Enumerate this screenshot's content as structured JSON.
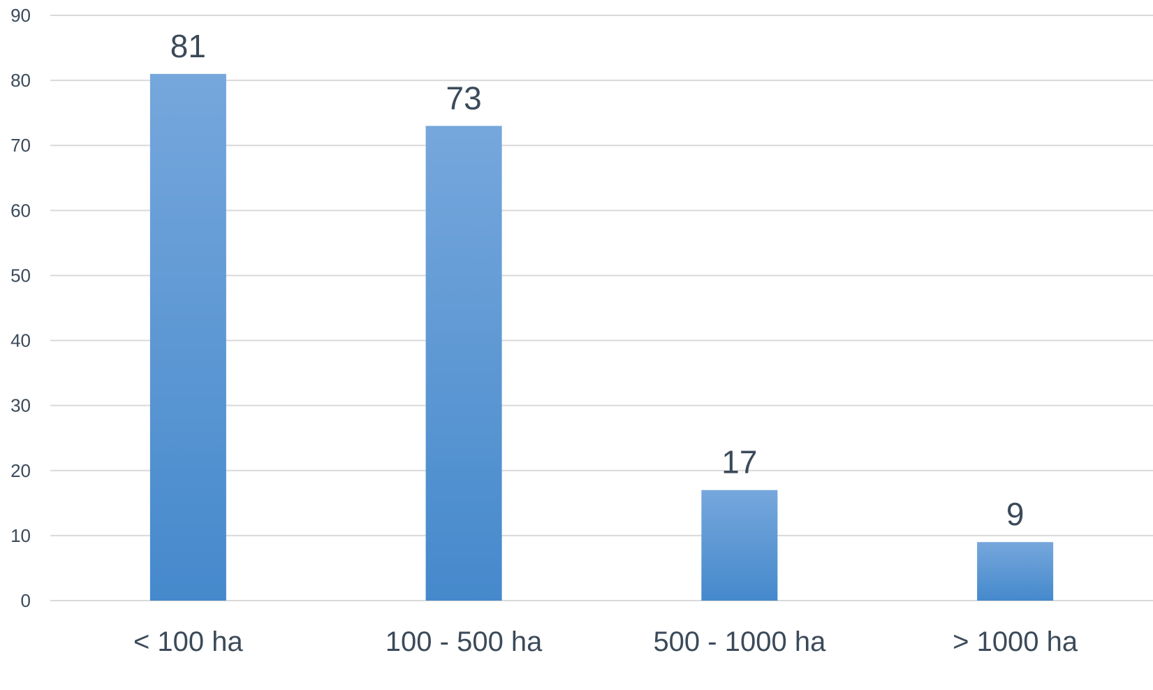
{
  "chart_data": {
    "type": "bar",
    "categories": [
      "< 100 ha",
      "100 - 500 ha",
      "500 - 1000 ha",
      "> 1000 ha"
    ],
    "values": [
      81,
      73,
      17,
      9
    ],
    "data_labels": [
      "81",
      "73",
      "17",
      "9"
    ],
    "ylim": [
      0,
      90
    ],
    "yticks": [
      0,
      10,
      20,
      30,
      40,
      50,
      60,
      70,
      80,
      90
    ],
    "grid": true,
    "legend": "none",
    "title": "",
    "xlabel": "",
    "ylabel": ""
  },
  "colors": {
    "bar_top": "#76a7dc",
    "bar_bottom": "#4589cc",
    "gridline": "#d9d9d9",
    "text": "#3b4a5a"
  }
}
